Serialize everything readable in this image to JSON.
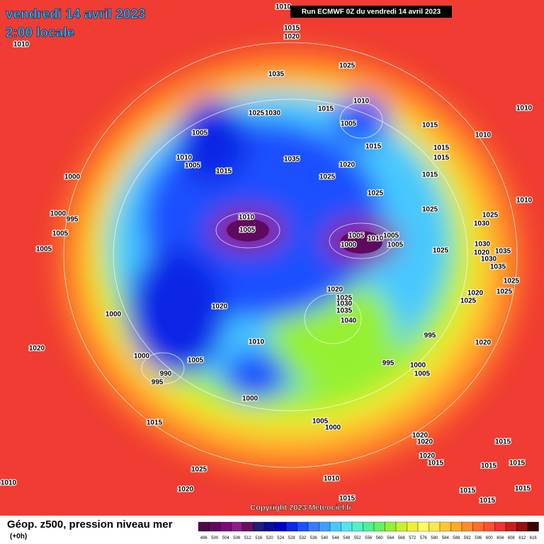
{
  "header": {
    "date": "vendredi 14 avril 2023",
    "time": "2:00 locale",
    "run": "Run ECMWF 0Z du vendredi 14 avril 2023"
  },
  "footer": {
    "title": "Géop. z500, pression niveau mer",
    "lead": "(+0h)",
    "copyright": "Copyright 2023 Meteociel.fr"
  },
  "legend": {
    "values": [
      496,
      500,
      504,
      508,
      512,
      516,
      520,
      524,
      528,
      532,
      536,
      540,
      544,
      548,
      552,
      556,
      560,
      564,
      568,
      572,
      576,
      580,
      584,
      588,
      592,
      596,
      600,
      604,
      608,
      612,
      616
    ],
    "colors": [
      "#4a0a4a",
      "#5e0a5e",
      "#7a0a7a",
      "#8e1a8e",
      "#6a1060",
      "#1e1e78",
      "#0a0aa0",
      "#0000c8",
      "#0a28e6",
      "#1e50ff",
      "#3c78ff",
      "#3ca0ff",
      "#46c8ff",
      "#50e6f0",
      "#50f0c8",
      "#50f096",
      "#64f064",
      "#96f032",
      "#c8f032",
      "#f0f032",
      "#ffff64",
      "#ffe650",
      "#ffc832",
      "#ffaa28",
      "#ff8c28",
      "#ff6e28",
      "#ff5032",
      "#f03232",
      "#c81e1e",
      "#961010",
      "#3c0000"
    ]
  },
  "isobars": [
    1010,
    1010,
    1015,
    1020,
    1025,
    1035,
    1010,
    1005,
    1015,
    1025,
    1030,
    1015,
    1015,
    1010,
    1010,
    1005,
    1010,
    1005,
    1015,
    1035,
    1020,
    1025,
    1015,
    1015,
    1015,
    1025,
    1025,
    1010,
    1025,
    1030,
    1000,
    1000,
    995,
    1005,
    1005,
    1010,
    1005,
    1005,
    1010,
    1005,
    1005,
    1000,
    1025,
    1030,
    1035,
    1030,
    1020,
    1035,
    1020,
    1025,
    1030,
    1035,
    1040,
    1025,
    1020,
    1025,
    1025,
    1020,
    1000,
    995,
    1020,
    1020,
    1010,
    1000,
    1005,
    990,
    995,
    995,
    1000,
    1005,
    1000,
    1015,
    1005,
    1000,
    1020,
    1020,
    1020,
    1015,
    1015,
    1015,
    1015,
    1025,
    1010,
    1010,
    1020,
    1015,
    1015,
    1015,
    1015
  ]
}
